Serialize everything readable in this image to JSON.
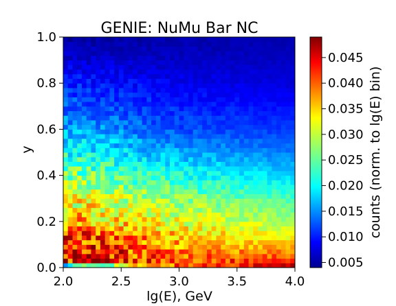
{
  "chart_data": {
    "type": "heatmap",
    "title": "GENIE: NuMu Bar NC",
    "xlabel": "lg(E), GeV",
    "ylabel": "y",
    "xlim": [
      2.0,
      4.0
    ],
    "ylim": [
      0.0,
      1.0
    ],
    "x_ticks": [
      2.0,
      2.5,
      3.0,
      3.5,
      4.0
    ],
    "x_tick_labels": [
      "2.0",
      "2.5",
      "3.0",
      "3.5",
      "4.0"
    ],
    "y_ticks": [
      0.0,
      0.2,
      0.4,
      0.6,
      0.8,
      1.0
    ],
    "y_tick_labels": [
      "0.0",
      "0.2",
      "0.4",
      "0.6",
      "0.8",
      "1.0"
    ],
    "grid": false,
    "colormap": "jet",
    "colorbar": {
      "label": "counts (norm. to lg(E) bin)",
      "vmin": 0.004,
      "vmax": 0.049,
      "ticks": [
        0.005,
        0.01,
        0.015,
        0.02,
        0.025,
        0.03,
        0.035,
        0.04,
        0.045
      ],
      "tick_labels": [
        "0.005",
        "0.010",
        "0.015",
        "0.020",
        "0.025",
        "0.030",
        "0.035",
        "0.040",
        "0.045"
      ]
    },
    "bins": {
      "x": 50,
      "y": 50
    },
    "value_profile": {
      "y_samples": [
        0.0,
        0.01,
        0.03,
        0.06,
        0.1,
        0.15,
        0.2,
        0.3,
        0.4,
        0.5,
        0.6,
        0.7,
        0.8,
        0.9,
        1.0
      ],
      "value_at_lgE_2.0": [
        0.013,
        0.02,
        0.043,
        0.045,
        0.044,
        0.04,
        0.036,
        0.032,
        0.027,
        0.022,
        0.018,
        0.014,
        0.011,
        0.008,
        0.005
      ],
      "value_at_lgE_3.0": [
        0.034,
        0.04,
        0.04,
        0.038,
        0.036,
        0.034,
        0.031,
        0.027,
        0.022,
        0.017,
        0.013,
        0.011,
        0.009,
        0.007,
        0.006
      ],
      "value_at_lgE_4.0": [
        0.045,
        0.046,
        0.042,
        0.038,
        0.034,
        0.031,
        0.028,
        0.024,
        0.019,
        0.015,
        0.012,
        0.01,
        0.008,
        0.007,
        0.006
      ]
    }
  }
}
